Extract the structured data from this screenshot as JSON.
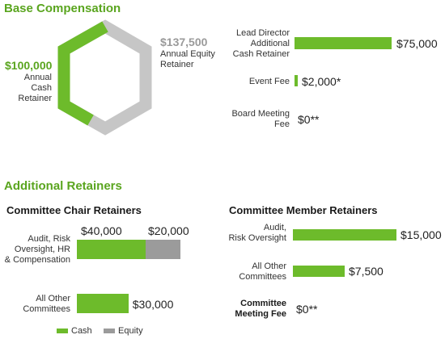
{
  "colors": {
    "cash": "#6dbb2b",
    "equity": "#9b9b9b",
    "hex_base": "#c6c6c6"
  },
  "base": {
    "title": "Base Compensation",
    "cash_amount": "$100,000",
    "cash_label": [
      "Annual Cash",
      "Retainer"
    ],
    "equity_amount": "$137,500",
    "equity_label": [
      "Annual Equity",
      "Retainer"
    ]
  },
  "additional": {
    "title": "Additional Retainers"
  },
  "chart_data": [
    {
      "type": "pie",
      "title": "",
      "categories": [
        "Annual Cash Retainer",
        "Annual Equity Retainer"
      ],
      "values": [
        100000,
        137500
      ]
    },
    {
      "type": "bar",
      "title": "",
      "categories": [
        "Lead Director Additional Cash Retainer",
        "Event Fee",
        "Board Meeting Fee"
      ],
      "values": [
        75000,
        2000,
        0
      ],
      "data_labels": [
        "$75,000",
        "$2,000*",
        "$0**"
      ],
      "labels": [
        [
          "Lead Director",
          "Additional",
          "Cash Retainer"
        ],
        [
          "Event Fee"
        ],
        [
          "Board Meeting",
          "Fee"
        ]
      ]
    },
    {
      "type": "bar",
      "title": "Committee Chair Retainers",
      "stacked": true,
      "categories": [
        "Audit, Risk Oversight, HR & Compensation",
        "All Other Committees"
      ],
      "series": [
        {
          "name": "Cash",
          "values": [
            40000,
            30000
          ]
        },
        {
          "name": "Equity",
          "values": [
            20000,
            0
          ]
        }
      ],
      "labels": [
        [
          "Audit, Risk",
          "Oversight, HR",
          "& Compensation"
        ],
        [
          "All Other",
          "Committees"
        ]
      ],
      "cash_labels": [
        "$40,000",
        "$30,000"
      ],
      "equity_labels": [
        "$20,000",
        ""
      ],
      "legend": [
        "Cash",
        "Equity"
      ]
    },
    {
      "type": "bar",
      "title": "Committee Member Retainers",
      "categories": [
        "Audit, Risk Oversight",
        "All Other Committees",
        "Committee Meeting Fee"
      ],
      "values": [
        15000,
        7500,
        0
      ],
      "data_labels": [
        "$15,000",
        "$7,500",
        "$0**"
      ],
      "labels": [
        [
          "Audit,",
          "Risk Oversight"
        ],
        [
          "All Other",
          "Committees"
        ],
        [
          "Committee",
          "Meeting Fee"
        ]
      ]
    }
  ]
}
